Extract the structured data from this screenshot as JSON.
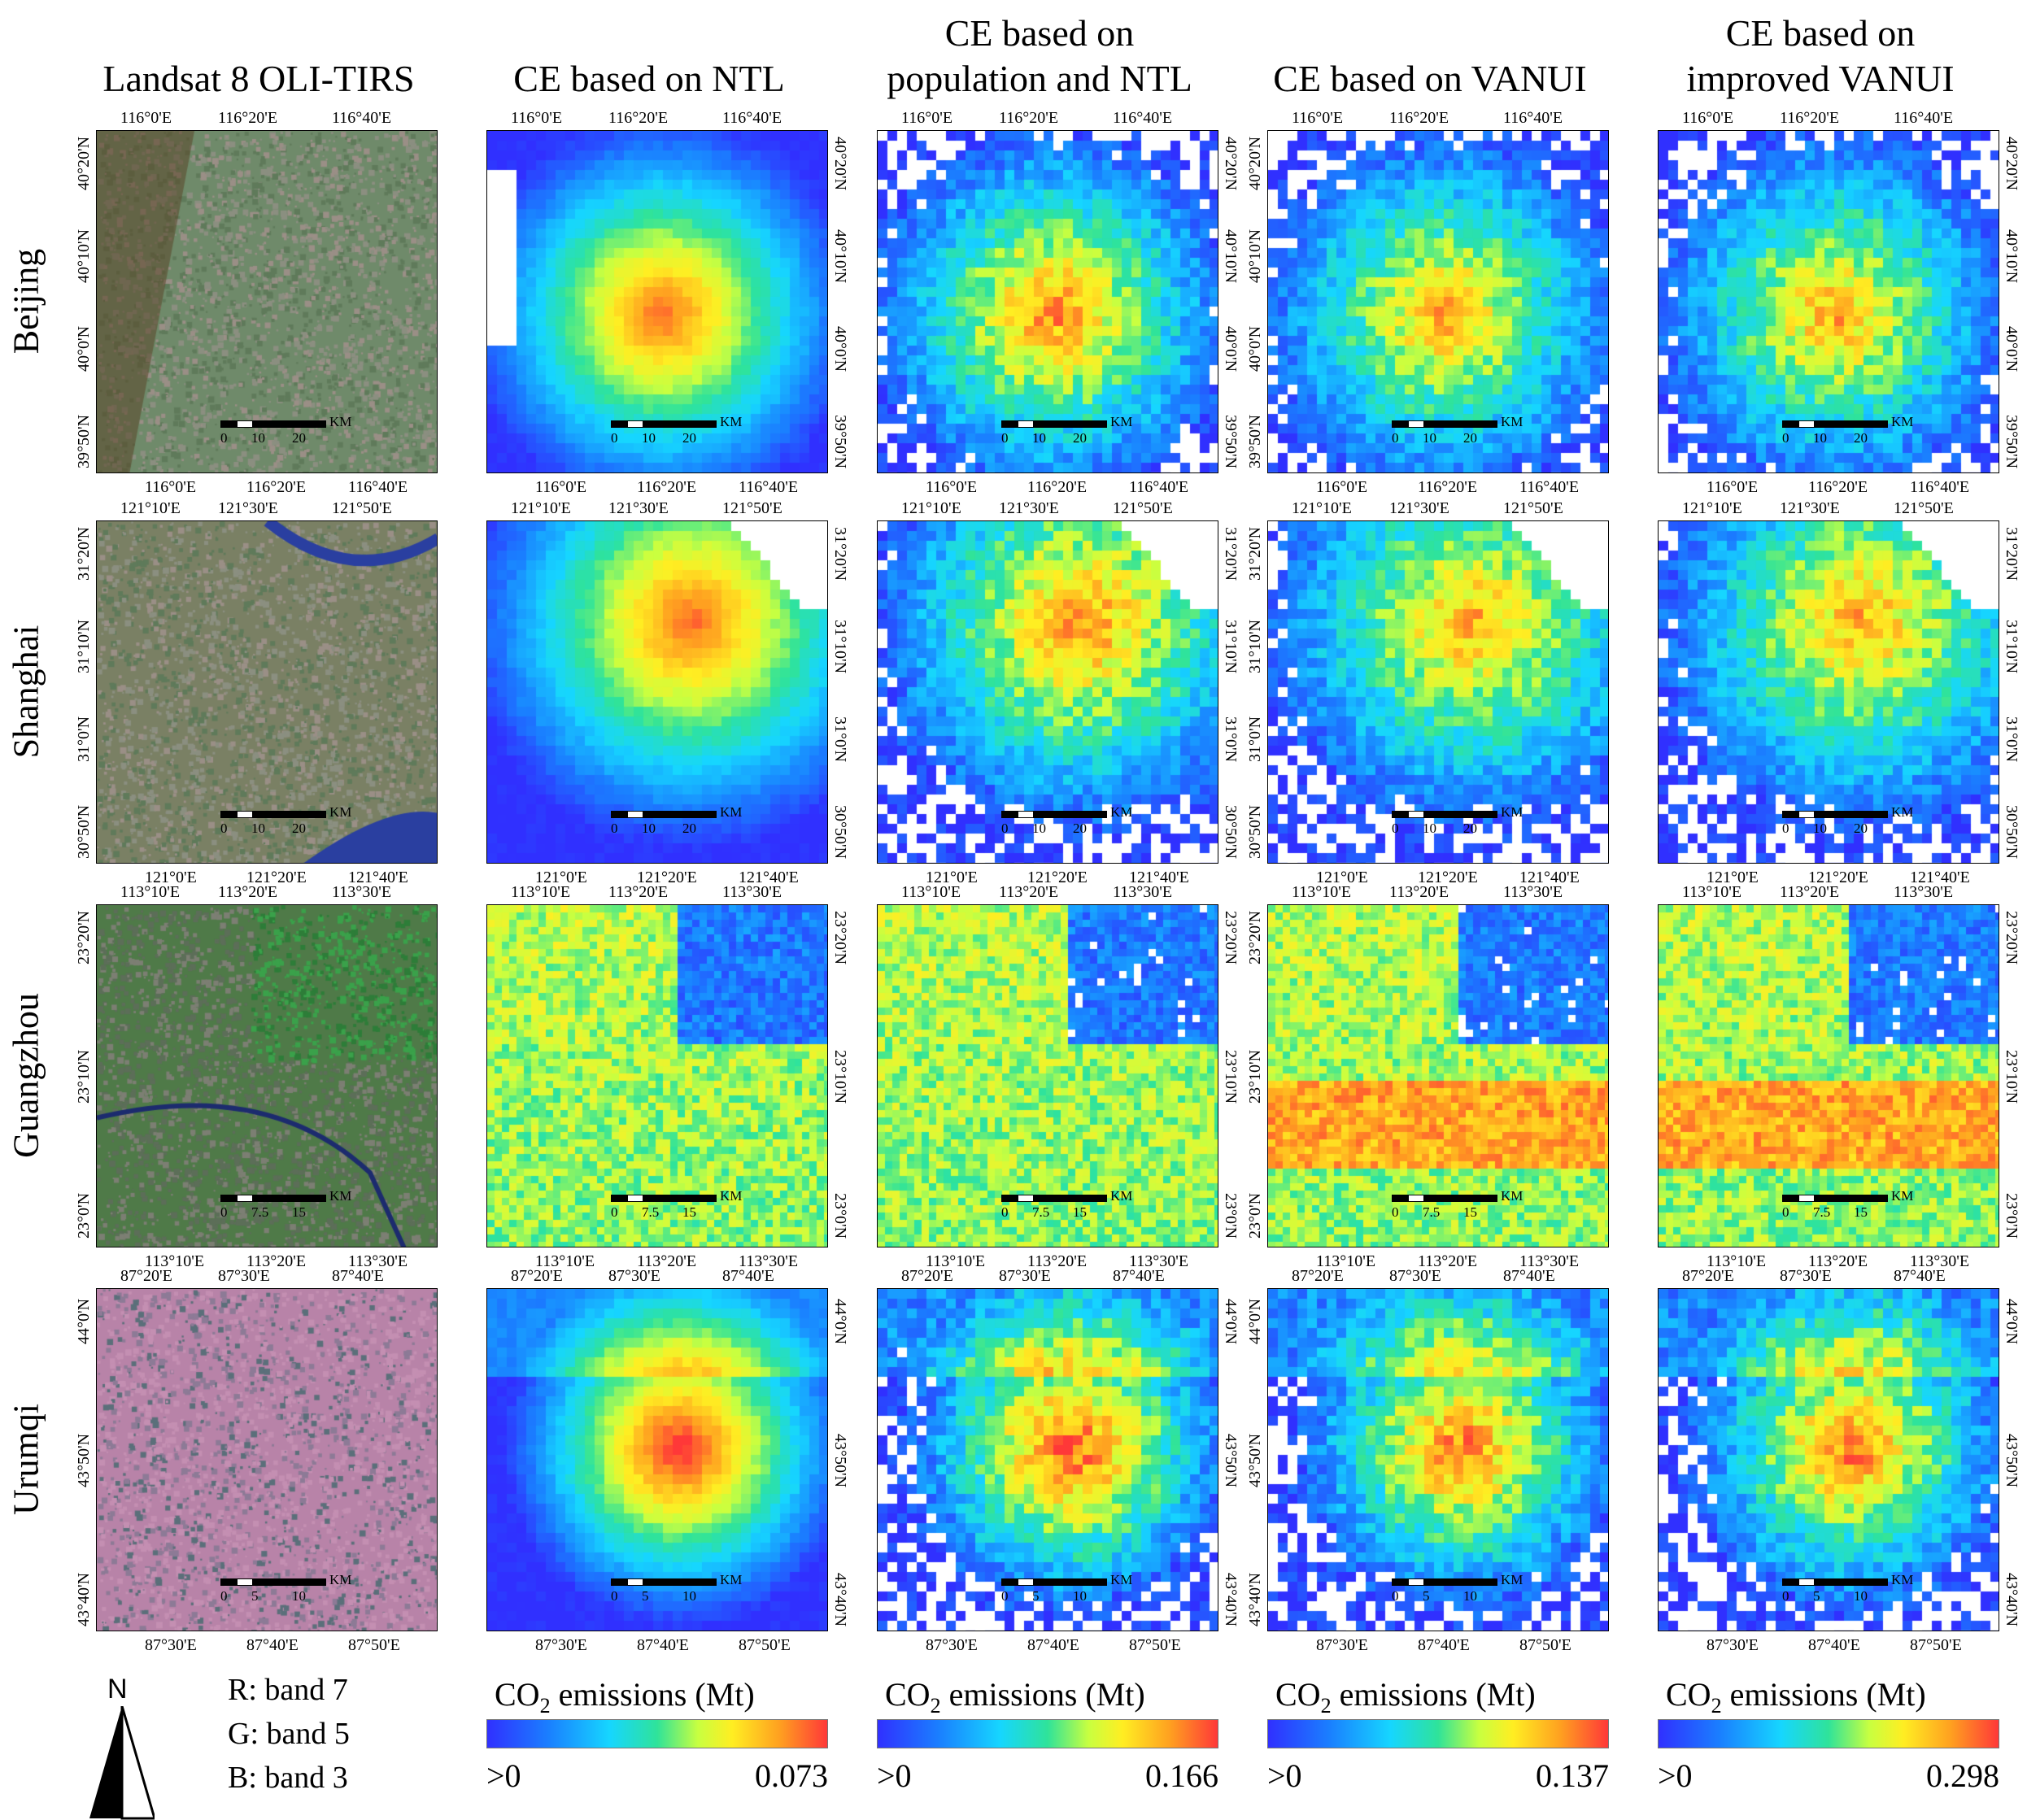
{
  "columns": [
    {
      "title_line1": "Landsat 8 OLI-TIRS",
      "title_line2": ""
    },
    {
      "title_line1": "CE based on NTL",
      "title_line2": ""
    },
    {
      "title_line1": "CE based on",
      "title_line2": "population and NTL"
    },
    {
      "title_line1": "CE based on VANUI",
      "title_line2": ""
    },
    {
      "title_line1": "CE based on",
      "title_line2": "improved VANUI"
    }
  ],
  "rows": [
    {
      "city": "Beijing",
      "top_ticks": [
        "116°0'E",
        "116°20'E",
        "116°40'E"
      ],
      "bottom_ticks": [
        "116°0'E",
        "116°20'E",
        "116°40'E"
      ],
      "side_ticks": [
        "40°20'N",
        "40°10'N",
        "40°0'N",
        "39°50'N"
      ],
      "scale": [
        "0",
        "10",
        "20"
      ]
    },
    {
      "city": "Shanghai",
      "top_ticks": [
        "121°10'E",
        "121°30'E",
        "121°50'E"
      ],
      "bottom_ticks": [
        "121°0'E",
        "121°20'E",
        "121°40'E"
      ],
      "side_ticks": [
        "31°20'N",
        "31°10'N",
        "31°0'N",
        "30°50'N"
      ],
      "scale": [
        "0",
        "10",
        "20"
      ]
    },
    {
      "city": "Guangzhou",
      "top_ticks": [
        "113°10'E",
        "113°20'E",
        "113°30'E"
      ],
      "bottom_ticks": [
        "113°10'E",
        "113°20'E",
        "113°30'E"
      ],
      "side_ticks": [
        "23°20'N",
        "23°10'N",
        "23°0'N"
      ],
      "scale": [
        "0",
        "7.5",
        "15"
      ]
    },
    {
      "city": "Urumqi",
      "top_ticks": [
        "87°20'E",
        "87°30'E",
        "87°40'E"
      ],
      "bottom_ticks": [
        "87°30'E",
        "87°40'E",
        "87°50'E"
      ],
      "side_ticks": [
        "44°0'N",
        "43°50'N",
        "43°40'N"
      ],
      "scale": [
        "0",
        "5",
        "10"
      ]
    }
  ],
  "scale_unit": "KM",
  "colorbars": [
    {
      "title": "CO",
      "sub": "2",
      "suffix": " emissions (Mt)",
      "min": ">0",
      "max": "0.073"
    },
    {
      "title": "CO",
      "sub": "2",
      "suffix": " emissions (Mt)",
      "min": ">0",
      "max": "0.166"
    },
    {
      "title": "CO",
      "sub": "2",
      "suffix": " emissions (Mt)",
      "min": ">0",
      "max": "0.137"
    },
    {
      "title": "CO",
      "sub": "2",
      "suffix": " emissions (Mt)",
      "min": ">0",
      "max": "0.298"
    }
  ],
  "north_label": "N",
  "bands": [
    "R: band 7",
    "G: band 5",
    "B: band 3"
  ],
  "colors": {
    "low": "#3030ff",
    "mid": "#16d6ff",
    "green": "#2fe39a",
    "yellow": "#ffee22",
    "orange": "#ffa020",
    "high": "#ff3838",
    "landsat_beijing": "#6f8a6a",
    "landsat_shanghai": "#7a8064",
    "landsat_guangzhou": "#4f7a48",
    "landsat_urumqi": "#b883a8"
  }
}
